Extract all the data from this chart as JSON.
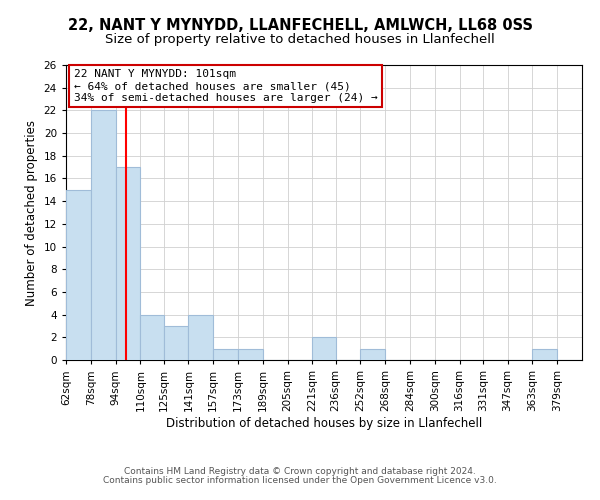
{
  "title1": "22, NANT Y MYNYDD, LLANFECHELL, AMLWCH, LL68 0SS",
  "title2": "Size of property relative to detached houses in Llanfechell",
  "xlabel": "Distribution of detached houses by size in Llanfechell",
  "ylabel": "Number of detached properties",
  "bin_edges": [
    62,
    78,
    94,
    110,
    125,
    141,
    157,
    173,
    189,
    205,
    221,
    236,
    252,
    268,
    284,
    300,
    316,
    331,
    347,
    363,
    379,
    395
  ],
  "bin_labels": [
    "62sqm",
    "78sqm",
    "94sqm",
    "110sqm",
    "125sqm",
    "141sqm",
    "157sqm",
    "173sqm",
    "189sqm",
    "205sqm",
    "221sqm",
    "236sqm",
    "252sqm",
    "268sqm",
    "284sqm",
    "300sqm",
    "316sqm",
    "331sqm",
    "347sqm",
    "363sqm",
    "379sqm"
  ],
  "bar_heights": [
    15,
    22,
    17,
    4,
    3,
    4,
    1,
    1,
    0,
    0,
    2,
    0,
    1,
    0,
    0,
    0,
    0,
    0,
    0,
    1,
    0
  ],
  "bar_color": "#c8dff0",
  "bar_edge_color": "#a0bcd8",
  "red_line_x": 101,
  "ylim": [
    0,
    26
  ],
  "yticks": [
    0,
    2,
    4,
    6,
    8,
    10,
    12,
    14,
    16,
    18,
    20,
    22,
    24,
    26
  ],
  "annotation_title": "22 NANT Y MYNYDD: 101sqm",
  "annotation_line1": "← 64% of detached houses are smaller (45)",
  "annotation_line2": "34% of semi-detached houses are larger (24) →",
  "footnote1": "Contains HM Land Registry data © Crown copyright and database right 2024.",
  "footnote2": "Contains public sector information licensed under the Open Government Licence v3.0.",
  "annotation_box_color": "#ffffff",
  "annotation_box_edge": "#cc0000",
  "title1_fontsize": 10.5,
  "title2_fontsize": 9.5,
  "axis_label_fontsize": 8.5,
  "tick_fontsize": 7.5,
  "annotation_fontsize": 8,
  "footnote_fontsize": 6.5
}
